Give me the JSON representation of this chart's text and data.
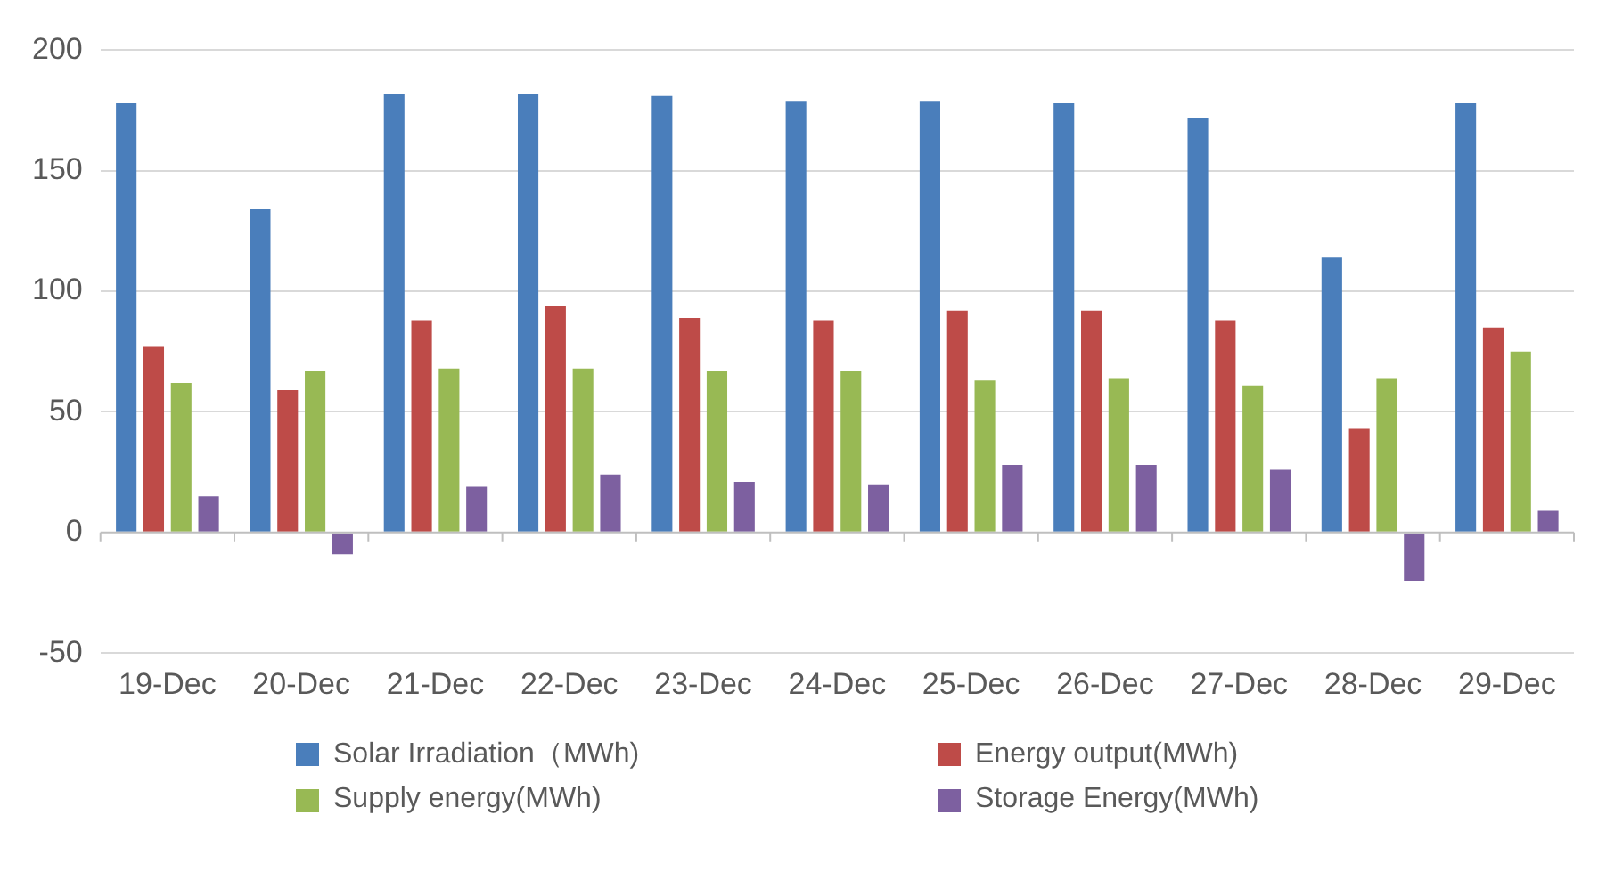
{
  "chart_data": {
    "type": "bar",
    "categories": [
      "19-Dec",
      "20-Dec",
      "21-Dec",
      "22-Dec",
      "23-Dec",
      "24-Dec",
      "25-Dec",
      "26-Dec",
      "27-Dec",
      "28-Dec",
      "29-Dec"
    ],
    "series": [
      {
        "name": "Solar Irradiation（MWh)",
        "color": "#4a7ebb",
        "values": [
          178,
          134,
          182,
          182,
          181,
          179,
          179,
          178,
          172,
          114,
          178
        ]
      },
      {
        "name": "Energy output(MWh)",
        "color": "#be4b48",
        "values": [
          77,
          59,
          88,
          94,
          89,
          88,
          92,
          92,
          88,
          43,
          85
        ]
      },
      {
        "name": "Supply energy(MWh)",
        "color": "#98b954",
        "values": [
          62,
          67,
          68,
          68,
          67,
          67,
          63,
          64,
          61,
          64,
          75
        ]
      },
      {
        "name": "Storage Energy(MWh)",
        "color": "#7d60a0",
        "values": [
          15,
          -9,
          19,
          24,
          21,
          20,
          28,
          28,
          26,
          -20,
          9
        ]
      }
    ],
    "ylim": [
      -50,
      200
    ],
    "yticks": [
      -50,
      0,
      50,
      100,
      150,
      200
    ],
    "grid": "y",
    "legend": "bottom"
  }
}
